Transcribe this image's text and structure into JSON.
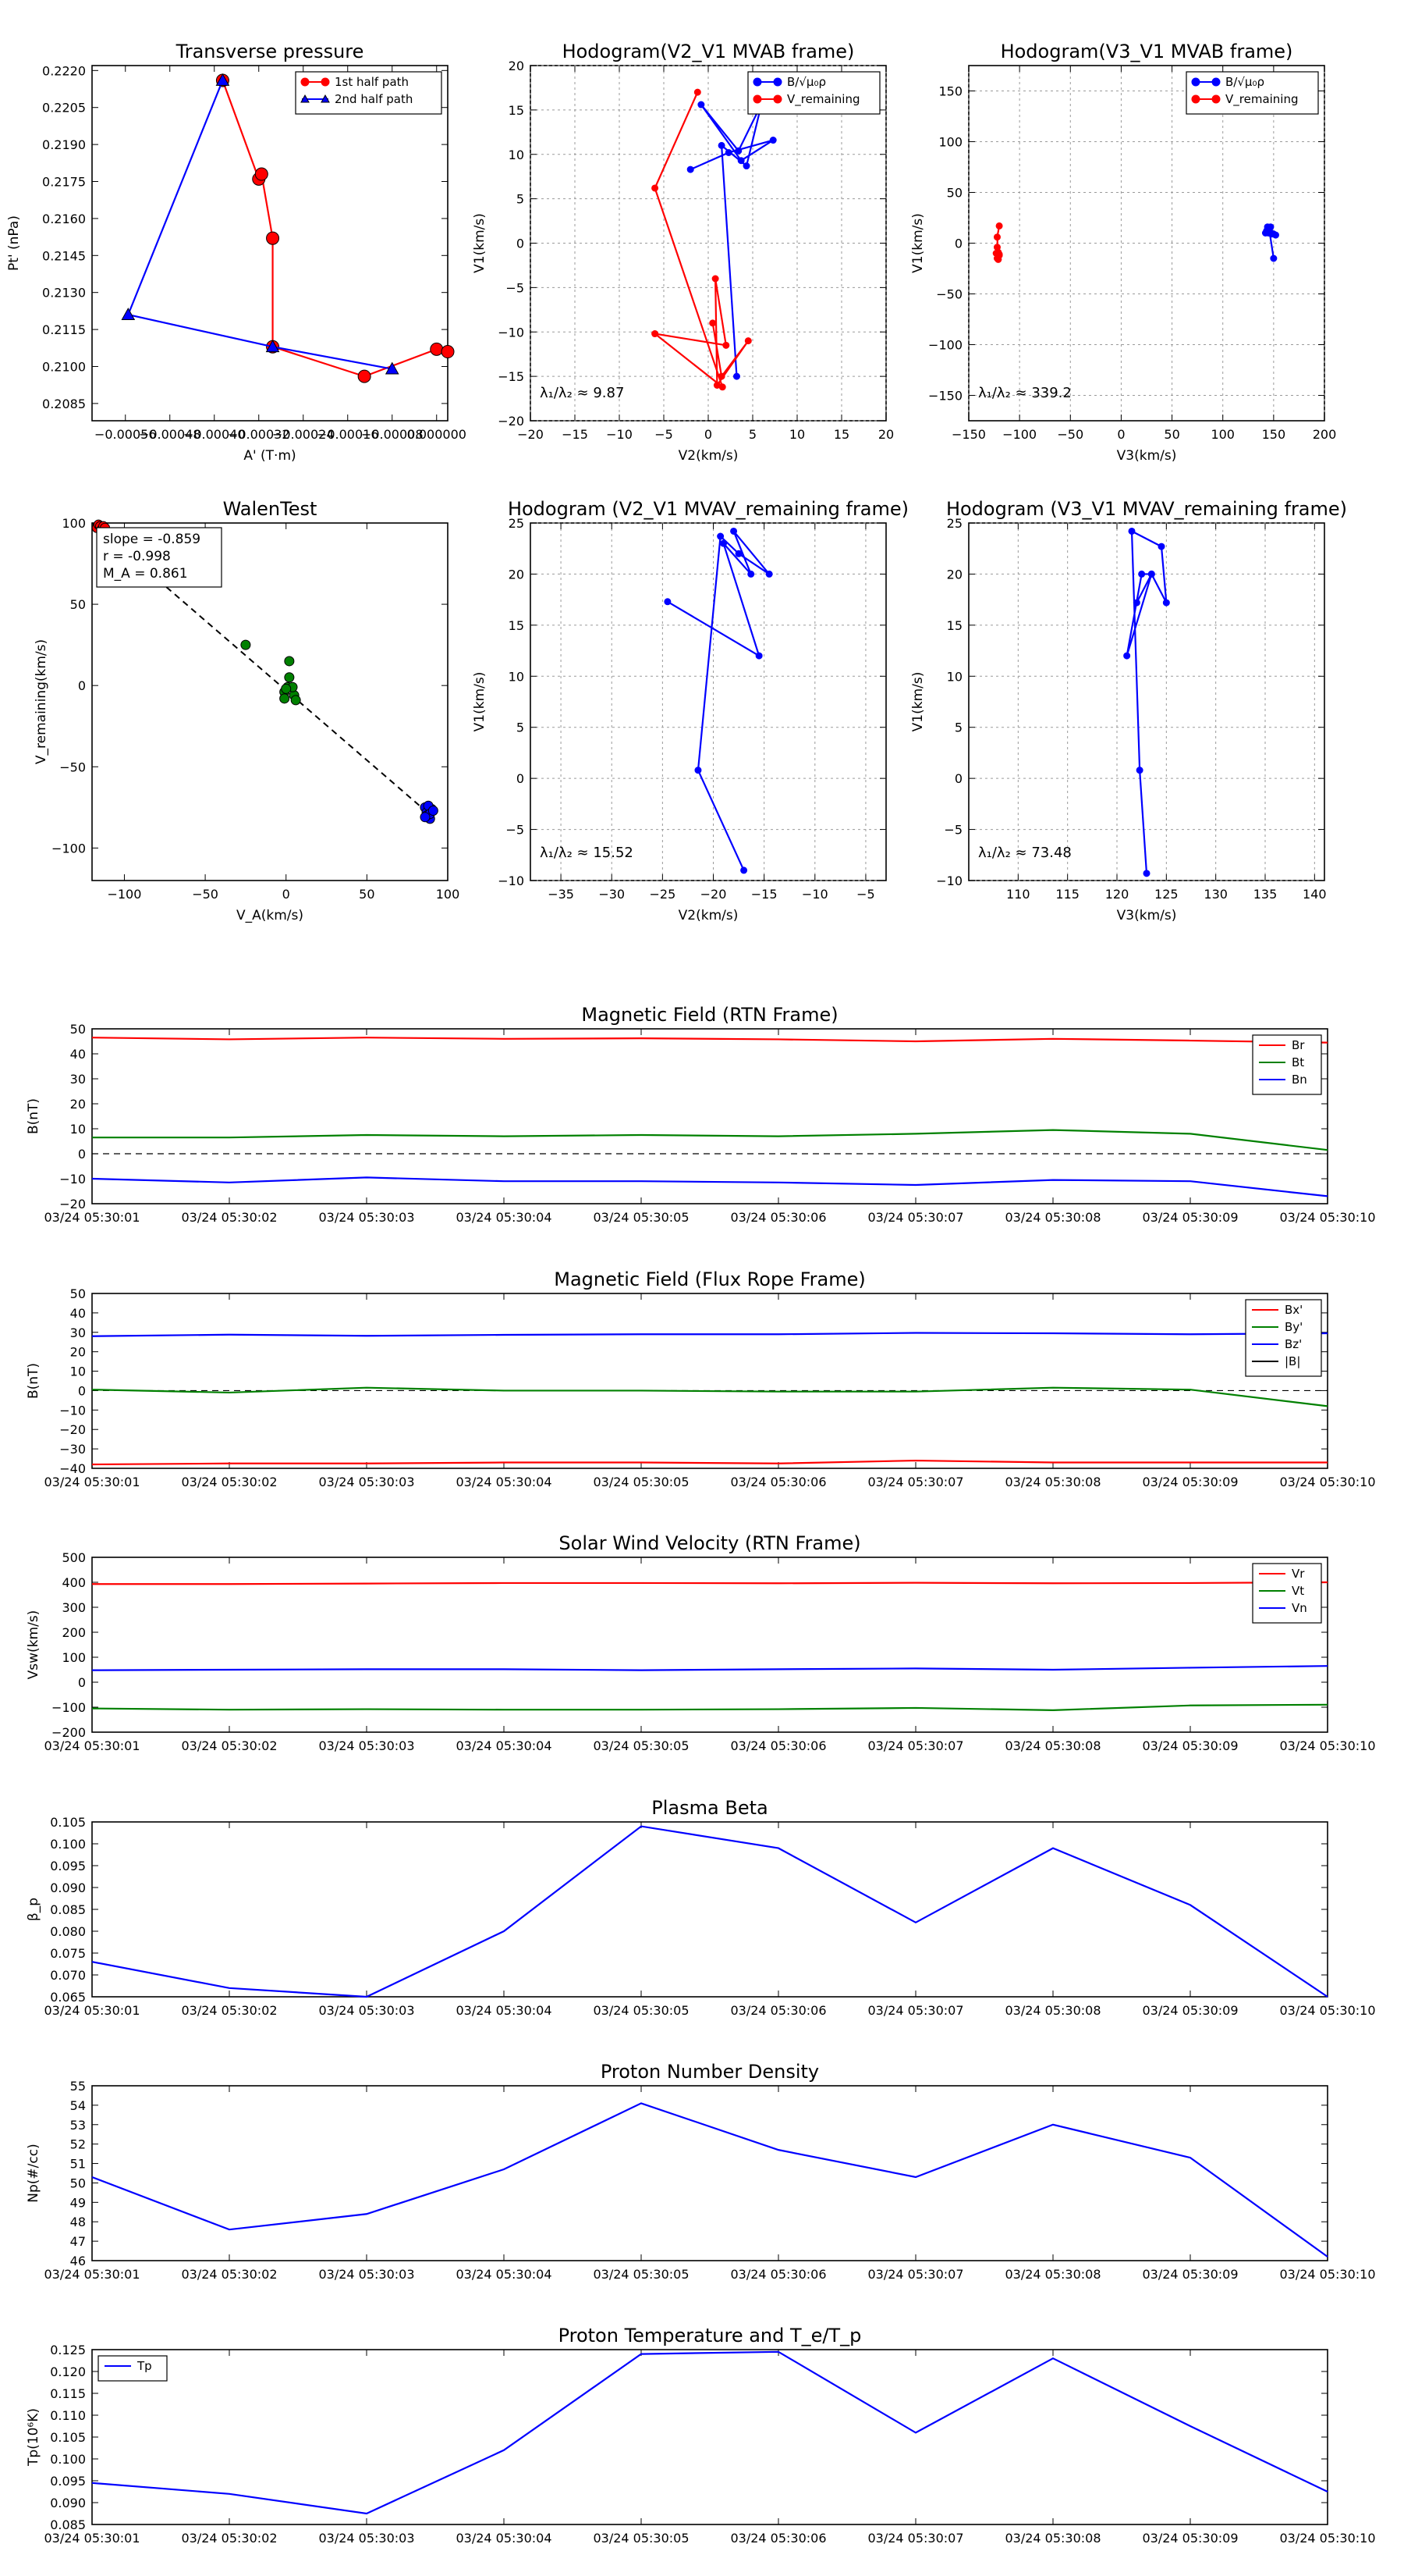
{
  "colors": {
    "red": "#ff0000",
    "blue": "#0000ff",
    "green": "#008000",
    "black": "#000000",
    "grid": "#9a9a9a"
  },
  "time_ticks": [
    "03/24 05:30:01",
    "03/24 05:30:02",
    "03/24 05:30:03",
    "03/24 05:30:04",
    "03/24 05:30:05",
    "03/24 05:30:06",
    "03/24 05:30:07",
    "03/24 05:30:08",
    "03/24 05:30:09",
    "03/24 05:30:10"
  ],
  "chart_data": [
    {
      "id": "tp",
      "type": "scatter",
      "title": "Transverse pressure",
      "xlabel": "A' (T·m)",
      "ylabel": "Pt' (nPa)",
      "xlim": [
        -0.00062,
        2e-05
      ],
      "ylim": [
        0.2078,
        0.2222
      ],
      "xticks": [
        -0.00056,
        -0.00048,
        -0.0004,
        -0.00032,
        -0.00024,
        -0.00016,
        -8e-05,
        0.0
      ],
      "xticklabels": [
        "−0.00056",
        "−0.00048",
        "−0.00040",
        "−0.00032",
        "−0.00024",
        "−0.00016",
        "−0.00008",
        "0.000000"
      ],
      "yticks": [
        0.2085,
        0.21,
        0.2115,
        0.213,
        0.2145,
        0.216,
        0.2175,
        0.219,
        0.2205,
        0.222
      ],
      "yticklabels": [
        "0.2085",
        "0.2100",
        "0.2115",
        "0.2130",
        "0.2145",
        "0.2160",
        "0.2175",
        "0.2190",
        "0.2205",
        "0.2220"
      ],
      "series": [
        {
          "name": "1st half path",
          "color": "red",
          "marker": "circle",
          "x": [
            -0.000385,
            -0.00032,
            -0.000315,
            -0.000295,
            -0.000295,
            -0.00013,
            0.0,
            2e-05
          ],
          "y": [
            0.2216,
            0.2176,
            0.2178,
            0.2152,
            0.2108,
            0.2096,
            0.2107,
            0.2106
          ]
        },
        {
          "name": "2nd half path",
          "color": "blue",
          "marker": "triangle",
          "x": [
            -0.000385,
            -0.000555,
            -0.000295,
            -8e-05
          ],
          "y": [
            0.2216,
            0.2121,
            0.2108,
            0.2099
          ]
        }
      ],
      "legend": {
        "position": "top-right",
        "entries": [
          "1st half path",
          "2nd half path"
        ]
      }
    },
    {
      "id": "h1",
      "type": "line",
      "title": "Hodogram(V2_V1 MVAB frame)",
      "xlabel": "V2(km/s)",
      "ylabel": "V1(km/s)",
      "xlim": [
        -20,
        20
      ],
      "ylim": [
        -20,
        20
      ],
      "xticks": [
        -20,
        -15,
        -10,
        -5,
        0,
        5,
        10,
        15,
        20
      ],
      "yticks": [
        -20,
        -15,
        -10,
        -5,
        0,
        5,
        10,
        15,
        20
      ],
      "xticklabels": [
        "−20",
        "−15",
        "−10",
        "−5",
        "0",
        "5",
        "10",
        "15",
        "20"
      ],
      "yticklabels": [
        "−20",
        "−15",
        "−10",
        "−5",
        "0",
        "5",
        "10",
        "15",
        "20"
      ],
      "grid": true,
      "series": [
        {
          "name": "B/√(μ₀ρ)",
          "color": "blue",
          "x": [
            3.2,
            1.5,
            4.3,
            6.0,
            3.4,
            -0.8,
            3.7,
            7.3,
            2.3,
            -2.0
          ],
          "y": [
            -15.0,
            11.0,
            8.7,
            15.7,
            10.4,
            15.6,
            9.3,
            11.6,
            10.2,
            8.3
          ]
        },
        {
          "name": "V_remaining",
          "color": "red",
          "x": [
            -1.2,
            -6.0,
            1.6,
            -6.0,
            2.0,
            0.8,
            1.0,
            4.5,
            1.5,
            0.5
          ],
          "y": [
            17.0,
            6.2,
            -16.2,
            -10.2,
            -11.5,
            -4.0,
            -16.0,
            -11.0,
            -15.0,
            -9.0
          ]
        }
      ],
      "legend": {
        "position": "top-right",
        "entries": [
          "B/√μ₀ρ",
          "V_remaining"
        ]
      },
      "annotation": "λ₁/λ₂ ≈ 9.87"
    },
    {
      "id": "h2",
      "type": "line",
      "title": "Hodogram(V3_V1 MVAB frame)",
      "xlabel": "V3(km/s)",
      "ylabel": "V1(km/s)",
      "xlim": [
        -150,
        200
      ],
      "ylim": [
        -175,
        175
      ],
      "xticks": [
        -150,
        -100,
        -50,
        0,
        50,
        100,
        150,
        200
      ],
      "yticks": [
        -150,
        -100,
        -50,
        0,
        50,
        100,
        150
      ],
      "xticklabels": [
        "−150",
        "−100",
        "−50",
        "0",
        "50",
        "100",
        "150",
        "200"
      ],
      "yticklabels": [
        "−150",
        "−100",
        "−50",
        "0",
        "50",
        "100",
        "150"
      ],
      "grid": true,
      "series": [
        {
          "name": "B/√(μ₀ρ)",
          "color": "blue",
          "x": [
            150,
            146,
            148,
            144,
            142,
            147,
            150,
            143,
            145,
            152
          ],
          "y": [
            -15,
            11,
            9,
            16,
            10,
            16,
            9,
            12,
            10,
            8
          ]
        },
        {
          "name": "V_remaining",
          "color": "red",
          "x": [
            -120,
            -122,
            -121,
            -123,
            -120,
            -122,
            -121,
            -120,
            -122,
            -121
          ],
          "y": [
            17,
            6,
            -16,
            -10,
            -12,
            -4,
            -16,
            -11,
            -15,
            -9
          ]
        }
      ],
      "legend": {
        "position": "top-right",
        "entries": [
          "B/√μ₀ρ",
          "V_remaining"
        ]
      },
      "annotation": "λ₁/λ₂ ≈ 339.2"
    },
    {
      "id": "walen",
      "type": "scatter",
      "title": "WalenTest",
      "xlabel": "V_A(km/s)",
      "ylabel": "V_remaining(km/s)",
      "xlim": [
        -120,
        100
      ],
      "ylim": [
        -120,
        100
      ],
      "xticks": [
        -100,
        -50,
        0,
        50,
        100
      ],
      "yticks": [
        -100,
        -50,
        0,
        50,
        100
      ],
      "xticklabels": [
        "−100",
        "−50",
        "0",
        "50",
        "100"
      ],
      "yticklabels": [
        "−100",
        "−50",
        "0",
        "50",
        "100"
      ],
      "fit_line": {
        "slope": -0.859,
        "intercept": -3.0
      },
      "series": [
        {
          "name": "red",
          "color": "red",
          "x": [
            -117,
            -116,
            -115,
            -114,
            -113,
            -112
          ],
          "y": [
            97,
            99,
            98,
            96,
            98,
            97
          ]
        },
        {
          "name": "green",
          "color": "green",
          "x": [
            -25,
            2,
            2,
            1,
            -1,
            -1,
            5,
            4,
            6,
            0
          ],
          "y": [
            25,
            15,
            5,
            -1,
            -4,
            -8,
            -6,
            -1,
            -9,
            -2
          ]
        },
        {
          "name": "blue",
          "color": "blue",
          "x": [
            86,
            87,
            88,
            89,
            90,
            88,
            87,
            89,
            91,
            86
          ],
          "y": [
            -75,
            -78,
            -80,
            -82,
            -76,
            -74,
            -80,
            -79,
            -77,
            -81
          ]
        }
      ],
      "textbox": [
        "slope = -0.859",
        "r = -0.998",
        "M_A = 0.861"
      ]
    },
    {
      "id": "h3",
      "type": "line",
      "title": "Hodogram (V2_V1 MVAV_remaining frame)",
      "xlabel": "V2(km/s)",
      "ylabel": "V1(km/s)",
      "xlim": [
        -38,
        -3
      ],
      "ylim": [
        -10,
        25
      ],
      "xticks": [
        -35,
        -30,
        -25,
        -20,
        -15,
        -10,
        -5
      ],
      "yticks": [
        -10,
        -5,
        0,
        5,
        10,
        15,
        20,
        25
      ],
      "xticklabels": [
        "−35",
        "−30",
        "−25",
        "−20",
        "−15",
        "−10",
        "−5"
      ],
      "yticklabels": [
        "−10",
        "−5",
        "0",
        "5",
        "10",
        "15",
        "20",
        "25"
      ],
      "grid": true,
      "series": [
        {
          "name": "trace",
          "color": "blue",
          "x": [
            -17.0,
            -21.5,
            -19.3,
            -17.5,
            -14.5,
            -18.0,
            -16.3,
            -19.0,
            -15.5,
            -24.5
          ],
          "y": [
            -9.0,
            0.8,
            23.7,
            22.0,
            20.0,
            24.2,
            20.0,
            23.0,
            12.0,
            17.3
          ]
        }
      ],
      "annotation": "λ₁/λ₂ ≈ 15.52"
    },
    {
      "id": "h4",
      "type": "line",
      "title": "Hodogram (V3_V1 MVAV_remaining frame)",
      "xlabel": "V3(km/s)",
      "ylabel": "V1(km/s)",
      "xlim": [
        105,
        141
      ],
      "ylim": [
        -10,
        25
      ],
      "xticks": [
        110,
        115,
        120,
        125,
        130,
        135,
        140
      ],
      "yticks": [
        -10,
        -5,
        0,
        5,
        10,
        15,
        20,
        25
      ],
      "xticklabels": [
        "110",
        "115",
        "120",
        "125",
        "130",
        "135",
        "140"
      ],
      "yticklabels": [
        "−10",
        "−5",
        "0",
        "5",
        "10",
        "15",
        "20",
        "25"
      ],
      "grid": true,
      "series": [
        {
          "name": "trace",
          "color": "blue",
          "x": [
            123.0,
            122.3,
            121.5,
            124.5,
            125.0,
            123.5,
            121.0,
            122.5,
            123.5,
            122.0
          ],
          "y": [
            -9.3,
            0.8,
            24.2,
            22.7,
            17.2,
            20.0,
            12.0,
            20.0,
            20.0,
            17.2
          ]
        }
      ],
      "annotation": "λ₁/λ₂ ≈ 73.48"
    },
    {
      "id": "bfield",
      "type": "line",
      "title": "Magnetic Field (RTN Frame)",
      "ylabel": "B(nT)",
      "ylim": [
        -20,
        50
      ],
      "yticks": [
        -20,
        -10,
        0,
        10,
        20,
        30,
        40,
        50
      ],
      "yticklabels": [
        "−20",
        "−10",
        "0",
        "10",
        "20",
        "30",
        "40",
        "50"
      ],
      "zero_line": true,
      "series": [
        {
          "name": "Br",
          "color": "red",
          "values": [
            46.5,
            45.8,
            46.5,
            46.0,
            46.2,
            45.8,
            45.0,
            46.0,
            45.3,
            44.5
          ]
        },
        {
          "name": "Bt",
          "color": "green",
          "values": [
            6.5,
            6.5,
            7.5,
            7.0,
            7.5,
            7.0,
            8.0,
            9.5,
            8.0,
            1.5
          ]
        },
        {
          "name": "Bn",
          "color": "blue",
          "values": [
            -10.0,
            -11.5,
            -9.5,
            -11.0,
            -11.0,
            -11.5,
            -12.5,
            -10.5,
            -11.0,
            -17.0
          ]
        }
      ],
      "legend": {
        "position": "top-right",
        "entries": [
          "Br",
          "Bt",
          "Bn"
        ]
      }
    },
    {
      "id": "frfield",
      "type": "line",
      "title": "Magnetic Field (Flux Rope Frame)",
      "ylabel": "B(nT)",
      "ylim": [
        -40,
        50
      ],
      "yticks": [
        -40,
        -30,
        -20,
        -10,
        0,
        10,
        20,
        30,
        40,
        50
      ],
      "yticklabels": [
        "−40",
        "−30",
        "−20",
        "−10",
        "0",
        "10",
        "20",
        "30",
        "40",
        "50"
      ],
      "zero_line": true,
      "series": [
        {
          "name": "Bx'",
          "color": "red",
          "values": [
            -38.0,
            -37.5,
            -37.5,
            -37.0,
            -37.0,
            -37.5,
            -36.0,
            -37.0,
            -37.0,
            -37.0
          ]
        },
        {
          "name": "By'",
          "color": "green",
          "values": [
            0.5,
            -1.0,
            1.5,
            0.0,
            0.0,
            -0.5,
            -0.5,
            1.5,
            0.5,
            -8.0
          ]
        },
        {
          "name": "Bz'",
          "color": "blue",
          "values": [
            28.0,
            28.8,
            28.2,
            28.7,
            29.0,
            29.0,
            29.7,
            29.5,
            29.0,
            29.5
          ]
        },
        {
          "name": "|B|",
          "color": "black",
          "values": []
        }
      ],
      "legend": {
        "position": "top-right",
        "entries": [
          "Bx'",
          "By'",
          "Bz'",
          "|B|"
        ]
      }
    },
    {
      "id": "vsw",
      "type": "line",
      "title": "Solar Wind Velocity (RTN Frame)",
      "ylabel": "Vsw(km/s)",
      "ylim": [
        -200,
        500
      ],
      "yticks": [
        -200,
        -100,
        0,
        100,
        200,
        300,
        400,
        500
      ],
      "yticklabels": [
        "−200",
        "−100",
        "0",
        "100",
        "200",
        "300",
        "400",
        "500"
      ],
      "series": [
        {
          "name": "Vr",
          "color": "red",
          "values": [
            393,
            393,
            395,
            397,
            397,
            396,
            398,
            396,
            397,
            400
          ]
        },
        {
          "name": "Vt",
          "color": "green",
          "values": [
            -105,
            -110,
            -108,
            -110,
            -110,
            -108,
            -103,
            -112,
            -93,
            -90
          ]
        },
        {
          "name": "Vn",
          "color": "blue",
          "values": [
            48,
            50,
            52,
            52,
            48,
            52,
            55,
            50,
            58,
            65
          ]
        }
      ],
      "legend": {
        "position": "top-right",
        "entries": [
          "Vr",
          "Vt",
          "Vn"
        ]
      }
    },
    {
      "id": "beta",
      "type": "line",
      "title": "Plasma Beta",
      "ylabel": "β_p",
      "ylim": [
        0.065,
        0.105
      ],
      "yticks": [
        0.065,
        0.07,
        0.075,
        0.08,
        0.085,
        0.09,
        0.095,
        0.1,
        0.105
      ],
      "yticklabels": [
        "0.065",
        "0.070",
        "0.075",
        "0.080",
        "0.085",
        "0.090",
        "0.095",
        "0.100",
        "0.105"
      ],
      "series": [
        {
          "name": "beta",
          "color": "blue",
          "values": [
            0.073,
            0.067,
            0.065,
            0.08,
            0.104,
            0.099,
            0.082,
            0.099,
            0.086,
            0.065
          ]
        }
      ]
    },
    {
      "id": "np",
      "type": "line",
      "title": "Proton Number Density",
      "ylabel": "Np(#/cc)",
      "ylim": [
        46,
        55
      ],
      "yticks": [
        46,
        47,
        48,
        49,
        50,
        51,
        52,
        53,
        54,
        55
      ],
      "yticklabels": [
        "46",
        "47",
        "48",
        "49",
        "50",
        "51",
        "52",
        "53",
        "54",
        "55"
      ],
      "series": [
        {
          "name": "Np",
          "color": "blue",
          "values": [
            50.3,
            47.6,
            48.4,
            50.7,
            54.1,
            51.7,
            50.3,
            53.0,
            51.3,
            46.2
          ]
        }
      ]
    },
    {
      "id": "tp2",
      "type": "line",
      "title": "Proton Temperature and T_e/T_p",
      "ylabel": "Tp(10⁶K)",
      "ylim": [
        0.085,
        0.125
      ],
      "yticks": [
        0.085,
        0.09,
        0.095,
        0.1,
        0.105,
        0.11,
        0.115,
        0.12,
        0.125
      ],
      "yticklabels": [
        "0.085",
        "0.090",
        "0.095",
        "0.100",
        "0.105",
        "0.110",
        "0.115",
        "0.120",
        "0.125"
      ],
      "series": [
        {
          "name": "Tp",
          "color": "blue",
          "values": [
            0.0945,
            0.092,
            0.0875,
            0.102,
            0.124,
            0.1245,
            0.106,
            0.123,
            0.1075,
            0.0925
          ]
        }
      ],
      "legend": {
        "position": "top-left",
        "entries": [
          "Tp"
        ]
      }
    }
  ]
}
